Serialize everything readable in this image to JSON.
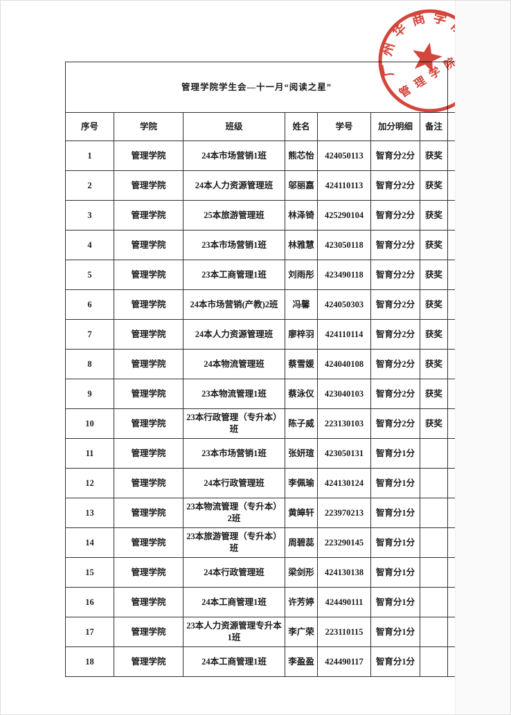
{
  "document": {
    "title": "管理学院学生会—十一月“阅读之星”"
  },
  "table": {
    "headers": [
      "序号",
      "学院",
      "班级",
      "姓名",
      "学号",
      "加分明细",
      "备注"
    ],
    "rows": [
      [
        "1",
        "管理学院",
        "24本市场营销1班",
        "熊芯怡",
        "424050113",
        "智育分2分",
        "获奖"
      ],
      [
        "2",
        "管理学院",
        "24本人力资源管理班",
        "邬丽嘉",
        "424110113",
        "智育分2分",
        "获奖"
      ],
      [
        "3",
        "管理学院",
        "25本旅游管理班",
        "林泽锜",
        "425290104",
        "智育分2分",
        "获奖"
      ],
      [
        "4",
        "管理学院",
        "23本市场营销1班",
        "林雅慧",
        "423050118",
        "智育分2分",
        "获奖"
      ],
      [
        "5",
        "管理学院",
        "23本工商管理1班",
        "刘雨彤",
        "423490118",
        "智育分2分",
        "获奖"
      ],
      [
        "6",
        "管理学院",
        "24本市场营销(产教)2班",
        "冯馨",
        "424050303",
        "智育分2分",
        "获奖"
      ],
      [
        "7",
        "管理学院",
        "24本人力资源管理班",
        "廖梓羽",
        "424110114",
        "智育分2分",
        "获奖"
      ],
      [
        "8",
        "管理学院",
        "24本物流管理班",
        "蔡雪媛",
        "424040108",
        "智育分2分",
        "获奖"
      ],
      [
        "9",
        "管理学院",
        "23本物流管理1班",
        "蔡泳仪",
        "423040103",
        "智育分2分",
        "获奖"
      ],
      [
        "10",
        "管理学院",
        "23本行政管理（专升本）班",
        "陈子威",
        "223130103",
        "智育分2分",
        "获奖"
      ],
      [
        "11",
        "管理学院",
        "23本市场营销1班",
        "张妍瑄",
        "423050131",
        "智育分1分",
        ""
      ],
      [
        "12",
        "管理学院",
        "24本行政管理班",
        "李佩瑜",
        "424130124",
        "智育分1分",
        ""
      ],
      [
        "13",
        "管理学院",
        "23本物流管理（专升本）2班",
        "黄皞轩",
        "223970213",
        "智育分1分",
        ""
      ],
      [
        "14",
        "管理学院",
        "23本旅游管理（专升本）班",
        "周碧蕊",
        "223290145",
        "智育分1分",
        ""
      ],
      [
        "15",
        "管理学院",
        "24本行政管理班",
        "梁剑形",
        "424130138",
        "智育分1分",
        ""
      ],
      [
        "16",
        "管理学院",
        "24本工商管理1班",
        "许芳婷",
        "424490111",
        "智育分1分",
        ""
      ],
      [
        "17",
        "管理学院",
        "23本人力资源管理专升本1班",
        "李广荣",
        "223110115",
        "智育分1分",
        ""
      ],
      [
        "18",
        "管理学院",
        "24本工商管理1班",
        "李盈盈",
        "424490117",
        "智育分1分",
        ""
      ]
    ]
  },
  "stamp": {
    "arc_text": "广州华商学院",
    "inner_text": "管理学院",
    "color": "#cf3226"
  }
}
